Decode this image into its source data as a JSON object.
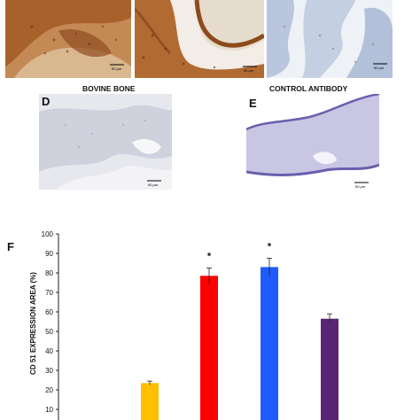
{
  "figure": {
    "panels": [
      {
        "id": "top-left",
        "letter": "",
        "caption": "",
        "scale_bar": "50 µm"
      },
      {
        "id": "top-middle",
        "letter": "",
        "caption": "",
        "scale_bar": "50 µm"
      },
      {
        "id": "top-right",
        "letter": "",
        "caption": "",
        "scale_bar": "50 µm"
      },
      {
        "id": "D",
        "letter": "D",
        "caption": "BOVINE BONE",
        "scale_bar": "50 µm"
      },
      {
        "id": "E",
        "letter": "E",
        "caption": "CONTROL ANTIBODY",
        "scale_bar": "50 µm"
      }
    ],
    "colors": {
      "stain_brown": "#b0662d",
      "tissue_blue": "#bcc7dc",
      "control_purple": "#8c83c0"
    }
  },
  "chart_panel_letter": "F",
  "chart_data": {
    "type": "bar",
    "title": "",
    "xlabel": "",
    "ylabel": "CD 51 EXPRESSION AREA (%)",
    "ylim": [
      10,
      100
    ],
    "yticks": [
      10,
      20,
      30,
      40,
      50,
      60,
      70,
      80,
      90,
      100
    ],
    "categories": [
      "",
      "",
      "",
      ""
    ],
    "values": [
      23.5,
      78.5,
      83,
      56.5
    ],
    "errors": [
      1,
      4,
      4.5,
      2.5
    ],
    "colors": [
      "#ffc000",
      "#ff0000",
      "#1f5cff",
      "#5b2575"
    ],
    "significance": [
      "",
      "*",
      "*",
      ""
    ],
    "grid": false
  }
}
